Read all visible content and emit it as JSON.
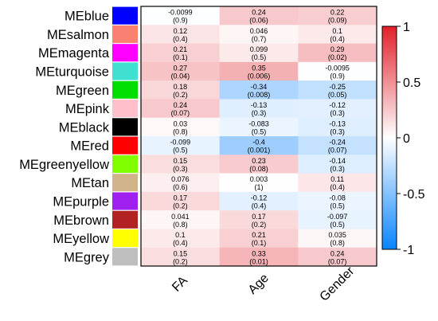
{
  "chart_data": {
    "type": "heatmap",
    "columns": [
      "FA",
      "Age",
      "Gender"
    ],
    "rows": [
      {
        "name": "MEblue",
        "color": "#0000FF",
        "cells": [
          {
            "r": "-0.0099",
            "p": "(0.9)"
          },
          {
            "r": "0.24",
            "p": "(0.06)"
          },
          {
            "r": "0.22",
            "p": "(0.09)"
          }
        ]
      },
      {
        "name": "MEsalmon",
        "color": "#FA8072",
        "cells": [
          {
            "r": "0.12",
            "p": "(0.4)"
          },
          {
            "r": "0.046",
            "p": "(0.7)"
          },
          {
            "r": "0.1",
            "p": "(0.4)"
          }
        ]
      },
      {
        "name": "MEmagenta",
        "color": "#FF00FF",
        "cells": [
          {
            "r": "0.21",
            "p": "(0.1)"
          },
          {
            "r": "0.099",
            "p": "(0.5)"
          },
          {
            "r": "0.29",
            "p": "(0.02)"
          }
        ]
      },
      {
        "name": "MEturquoise",
        "color": "#40E0D0",
        "cells": [
          {
            "r": "0.27",
            "p": "(0.04)"
          },
          {
            "r": "0.35",
            "p": "(0.006)"
          },
          {
            "r": "-0.0095",
            "p": "(0.9)"
          }
        ]
      },
      {
        "name": "MEgreen",
        "color": "#00DD00",
        "cells": [
          {
            "r": "0.18",
            "p": "(0.2)"
          },
          {
            "r": "-0.34",
            "p": "(0.008)"
          },
          {
            "r": "-0.25",
            "p": "(0.05)"
          }
        ]
      },
      {
        "name": "MEpink",
        "color": "#FFC0CB",
        "cells": [
          {
            "r": "0.24",
            "p": "(0.07)"
          },
          {
            "r": "-0.13",
            "p": "(0.3)"
          },
          {
            "r": "-0.12",
            "p": "(0.3)"
          }
        ]
      },
      {
        "name": "MEblack",
        "color": "#000000",
        "cells": [
          {
            "r": "0.03",
            "p": "(0.8)"
          },
          {
            "r": "-0.083",
            "p": "(0.5)"
          },
          {
            "r": "-0.13",
            "p": "(0.3)"
          }
        ]
      },
      {
        "name": "MEred",
        "color": "#FF0000",
        "cells": [
          {
            "r": "-0.099",
            "p": "(0.5)"
          },
          {
            "r": "-0.4",
            "p": "(0.001)"
          },
          {
            "r": "-0.24",
            "p": "(0.07)"
          }
        ]
      },
      {
        "name": "MEgreenyellow",
        "color": "#7FFF00",
        "cells": [
          {
            "r": "0.15",
            "p": "(0.3)"
          },
          {
            "r": "0.23",
            "p": "(0.08)"
          },
          {
            "r": "-0.14",
            "p": "(0.3)"
          }
        ]
      },
      {
        "name": "MEtan",
        "color": "#D2B48C",
        "cells": [
          {
            "r": "0.076",
            "p": "(0.6)"
          },
          {
            "r": "0.003",
            "p": "(1)"
          },
          {
            "r": "0.11",
            "p": "(0.4)"
          }
        ]
      },
      {
        "name": "MEpurple",
        "color": "#A020F0",
        "cells": [
          {
            "r": "0.17",
            "p": "(0.2)"
          },
          {
            "r": "-0.12",
            "p": "(0.4)"
          },
          {
            "r": "-0.08",
            "p": "(0.5)"
          }
        ]
      },
      {
        "name": "MEbrown",
        "color": "#B22222",
        "cells": [
          {
            "r": "0.041",
            "p": "(0.8)"
          },
          {
            "r": "0.17",
            "p": "(0.2)"
          },
          {
            "r": "-0.097",
            "p": "(0.5)"
          }
        ]
      },
      {
        "name": "MEyellow",
        "color": "#FFFF00",
        "cells": [
          {
            "r": "0.1",
            "p": "(0.4)"
          },
          {
            "r": "0.21",
            "p": "(0.1)"
          },
          {
            "r": "0.035",
            "p": "(0.8)"
          }
        ]
      },
      {
        "name": "MEgrey",
        "color": "#BEBEBE",
        "cells": [
          {
            "r": "0.15",
            "p": "(0.2)"
          },
          {
            "r": "0.33",
            "p": "(0.01)"
          },
          {
            "r": "0.24",
            "p": "(0.07)"
          }
        ]
      }
    ],
    "color_scale": {
      "range": [
        -1,
        1
      ],
      "ticks": [
        "1",
        "0.5",
        "0",
        "-0.5",
        "-1"
      ],
      "tick_values": [
        1,
        0.5,
        0,
        -0.5,
        -1
      ],
      "colors": {
        "negative": "#0A84FF",
        "zero": "#FFFFFF",
        "positive": "#E0202A"
      }
    }
  }
}
